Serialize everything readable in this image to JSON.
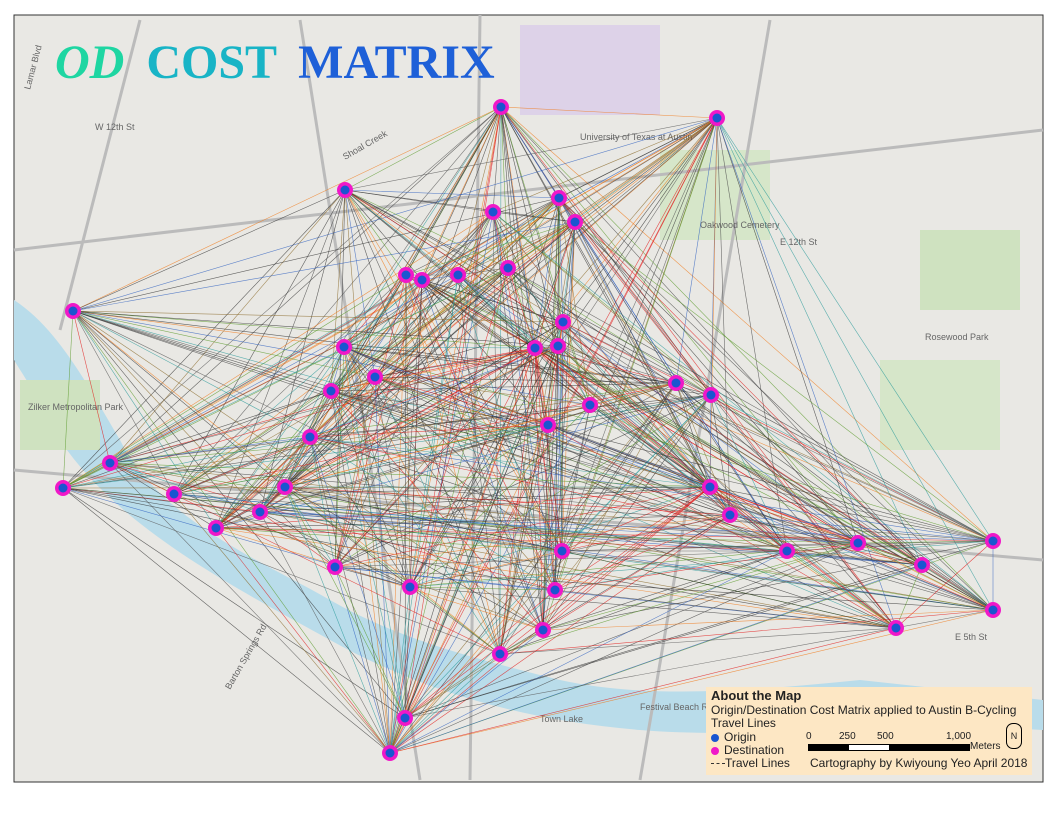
{
  "title": {
    "part1": "OD",
    "part2": "COST",
    "part3": "MATRIX"
  },
  "map_labels": [
    "Lamar Blvd",
    "W 12th St",
    "Shoal Creek",
    "E 12th St",
    "University of Texas at Austin",
    "Oakwood Cemetery",
    "Zilker Metropolitan Park",
    "Rosewood Park",
    "Town Lake",
    "Festival Beach Rd",
    "E 5th St",
    "Barton Springs Rd"
  ],
  "legend": {
    "heading": "About the Map",
    "description": "Origin/Destination Cost Matrix applied to Austin B-Cycling",
    "subheading": "Travel Lines",
    "items": [
      "Origin",
      "Destination",
      "Travel Lines"
    ]
  },
  "scale": {
    "labels": [
      "0",
      "250",
      "500",
      "1,000"
    ],
    "unit": "Meters"
  },
  "credit": "Cartography by Kwiyoung Yeo April 2018"
}
